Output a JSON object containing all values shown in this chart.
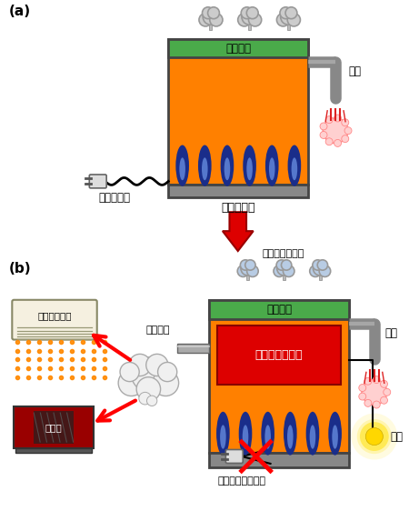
{
  "title_a": "(a)",
  "title_b": "(b)",
  "label_heat_exchanger": "熱交換器",
  "label_gas_heater": "ガス給湯器",
  "label_electricity_needed": "電力が必要",
  "label_hot_water": "お湯",
  "label_harmless_gas": "無害な排気ガス",
  "label_thermoelectric": "熱電モジュール",
  "label_superheated_steam": "過熱蒸気",
  "label_mist_sauna": "ミストサウナ",
  "label_cooker": "調理器",
  "label_no_outlet": "コンセント要らず",
  "label_power_gen": "発電",
  "bg_color": "#ffffff",
  "heater_orange": "#FF8000",
  "green_top": "#4aaa4a",
  "thermoelectric_red": "#DD0000",
  "pipe_gray": "#777777",
  "smoke_a_color": "#cccccc",
  "smoke_b_color": "#aabbdd"
}
